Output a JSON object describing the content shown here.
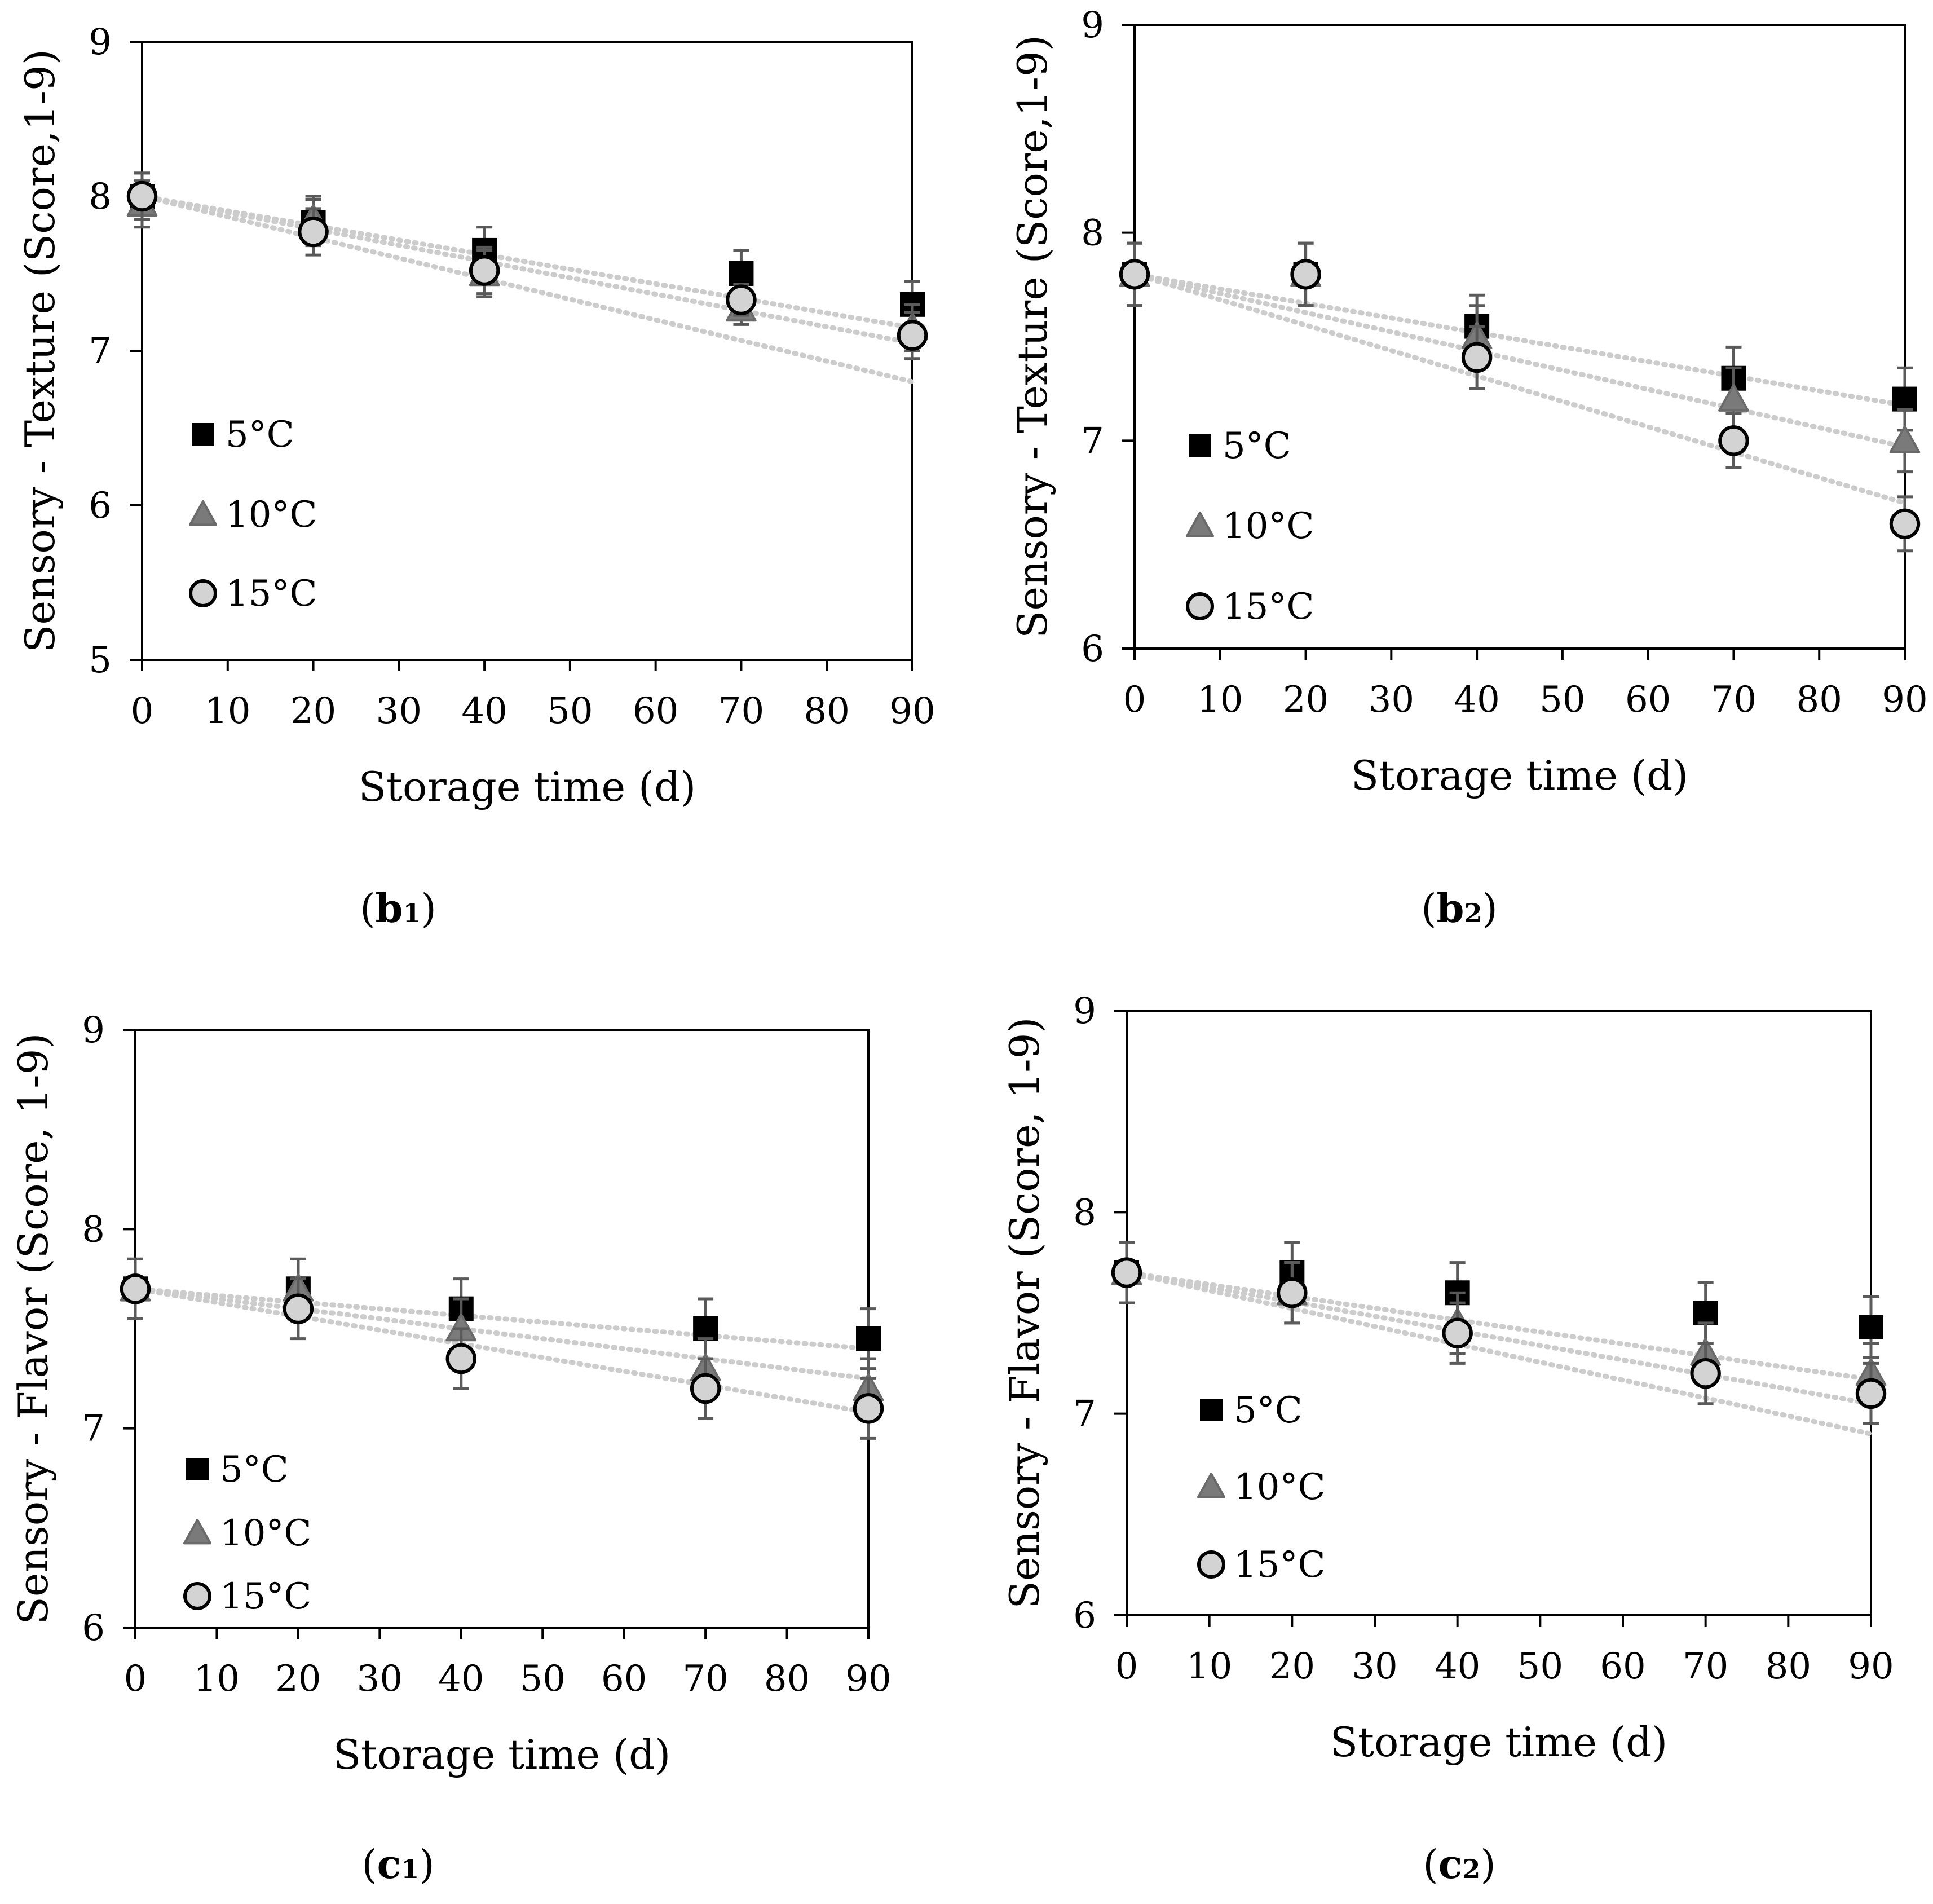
{
  "colors": {
    "s5": "#000000",
    "s10": "#7a7a7a",
    "s15": "#d3d3d3",
    "errorbar": "#5a5a5a",
    "trend": "#cccccc"
  },
  "chart_data": [
    {
      "id": "b1",
      "type": "scatter",
      "label_letter": "b",
      "label_sub": "1",
      "xlabel": "Storage time (d)",
      "ylabel": "Sensory - Texture (Score,1-9)",
      "xlim": [
        0,
        90
      ],
      "ylim": [
        5,
        9
      ],
      "xticks": [
        0,
        10,
        20,
        30,
        40,
        50,
        60,
        70,
        80,
        90
      ],
      "yticks": [
        5,
        6,
        7,
        8,
        9
      ],
      "x": [
        0,
        20,
        40,
        70,
        90
      ],
      "legend_position": "left-middle",
      "series": [
        {
          "name": "5°C",
          "marker": "square",
          "values": [
            8.0,
            7.83,
            7.65,
            7.5,
            7.3
          ],
          "error": [
            0.15,
            0.15,
            0.15,
            0.15,
            0.15
          ],
          "trend": [
            8.0,
            7.15
          ]
        },
        {
          "name": "10°C",
          "marker": "triangle",
          "values": [
            7.95,
            7.85,
            7.5,
            7.27,
            7.15
          ],
          "error": [
            0.15,
            0.15,
            0.15,
            0.1,
            0.15
          ],
          "trend": [
            8.0,
            7.05
          ]
        },
        {
          "name": "15°C",
          "marker": "circle",
          "values": [
            8.0,
            7.77,
            7.52,
            7.33,
            7.1
          ],
          "error": [
            0.15,
            0.15,
            0.15,
            0.1,
            0.15
          ],
          "trend": [
            8.0,
            6.8
          ]
        }
      ]
    },
    {
      "id": "b2",
      "type": "scatter",
      "label_letter": "b",
      "label_sub": "2",
      "xlabel": "Storage time (d)",
      "ylabel": "Sensory - Texture (Score,1-9)",
      "xlim": [
        0,
        90
      ],
      "ylim": [
        6,
        9
      ],
      "xticks": [
        0,
        10,
        20,
        30,
        40,
        50,
        60,
        70,
        80,
        90
      ],
      "yticks": [
        6,
        7,
        8,
        9
      ],
      "x": [
        0,
        20,
        40,
        70,
        90
      ],
      "legend_position": "left-bottom",
      "series": [
        {
          "name": "5°C",
          "marker": "square",
          "values": [
            7.8,
            7.8,
            7.55,
            7.3,
            7.2
          ],
          "error": [
            0.15,
            0.15,
            0.15,
            0.15,
            0.15
          ],
          "trend": [
            7.8,
            7.17
          ]
        },
        {
          "name": "10°C",
          "marker": "triangle",
          "values": [
            7.8,
            7.8,
            7.5,
            7.2,
            7.0
          ],
          "error": [
            0.15,
            0.15,
            0.15,
            0.15,
            0.15
          ],
          "trend": [
            7.8,
            6.97
          ]
        },
        {
          "name": "15°C",
          "marker": "circle",
          "values": [
            7.8,
            7.8,
            7.4,
            7.0,
            6.6
          ],
          "error": [
            0.15,
            0.15,
            0.15,
            0.13,
            0.13
          ],
          "trend": [
            7.8,
            6.7
          ]
        }
      ]
    },
    {
      "id": "c1",
      "type": "scatter",
      "label_letter": "c",
      "label_sub": "1",
      "xlabel": "Storage time (d)",
      "ylabel": "Sensory - Flavor (Score, 1-9)",
      "xlim": [
        0,
        90
      ],
      "ylim": [
        6,
        9
      ],
      "xticks": [
        0,
        10,
        20,
        30,
        40,
        50,
        60,
        70,
        80,
        90
      ],
      "yticks": [
        6,
        7,
        8,
        9
      ],
      "x": [
        0,
        20,
        40,
        70,
        90
      ],
      "legend_position": "left-bottom",
      "series": [
        {
          "name": "5°C",
          "marker": "square",
          "values": [
            7.7,
            7.7,
            7.6,
            7.5,
            7.45
          ],
          "error": [
            0.15,
            0.15,
            0.15,
            0.15,
            0.15
          ],
          "trend": [
            7.7,
            7.4
          ]
        },
        {
          "name": "10°C",
          "marker": "triangle",
          "values": [
            7.7,
            7.7,
            7.5,
            7.3,
            7.2
          ],
          "error": [
            0.15,
            0.15,
            0.15,
            0.15,
            0.15
          ],
          "trend": [
            7.7,
            7.25
          ]
        },
        {
          "name": "15°C",
          "marker": "circle",
          "values": [
            7.7,
            7.6,
            7.35,
            7.2,
            7.1
          ],
          "error": [
            0.15,
            0.15,
            0.15,
            0.15,
            0.15
          ],
          "trend": [
            7.7,
            7.08
          ]
        }
      ]
    },
    {
      "id": "c2",
      "type": "scatter",
      "label_letter": "c",
      "label_sub": "2",
      "xlabel": "Storage time (d)",
      "ylabel": "Sensory - Flavor (Score, 1-9)",
      "xlim": [
        0,
        90
      ],
      "ylim": [
        6,
        9
      ],
      "xticks": [
        0,
        10,
        20,
        30,
        40,
        50,
        60,
        70,
        80,
        90
      ],
      "yticks": [
        6,
        7,
        8,
        9
      ],
      "x": [
        0,
        20,
        40,
        70,
        90
      ],
      "legend_position": "left-bottom",
      "series": [
        {
          "name": "5°C",
          "marker": "square",
          "values": [
            7.7,
            7.7,
            7.6,
            7.5,
            7.43
          ],
          "error": [
            0.15,
            0.15,
            0.15,
            0.15,
            0.15
          ],
          "trend": [
            7.7,
            7.17
          ]
        },
        {
          "name": "10°C",
          "marker": "triangle",
          "values": [
            7.7,
            7.6,
            7.45,
            7.3,
            7.2
          ],
          "error": [
            0.15,
            0.15,
            0.15,
            0.15,
            0.15
          ],
          "trend": [
            7.7,
            7.05
          ]
        },
        {
          "name": "15°C",
          "marker": "circle",
          "values": [
            7.7,
            7.6,
            7.4,
            7.2,
            7.1
          ],
          "error": [
            0.15,
            0.15,
            0.15,
            0.15,
            0.15
          ],
          "trend": [
            7.7,
            6.9
          ]
        }
      ]
    }
  ]
}
